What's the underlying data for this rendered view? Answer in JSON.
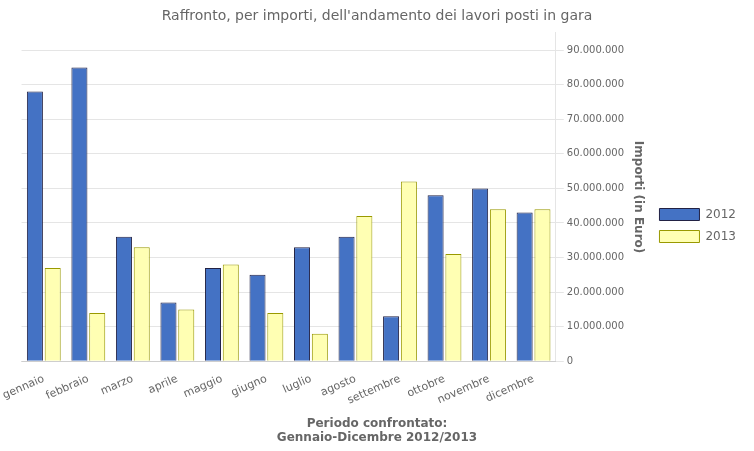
{
  "chart_data": {
    "type": "bar",
    "title": "Raffronto, per importi, dell'andamento dei lavori posti in gara",
    "subtitle": [
      "Periodo confrontato:",
      "Gennaio-Dicembre 2012/2013"
    ],
    "ylabel": "Importi (in Euro)",
    "categories": [
      "gennaio",
      "febbraio",
      "marzo",
      "aprile",
      "maggio",
      "giugno",
      "luglio",
      "agosto",
      "settembre",
      "ottobre",
      "novembre",
      "dicembre"
    ],
    "series": [
      {
        "name": "2012",
        "color": "#4472C4",
        "values": [
          78000000,
          85000000,
          36000000,
          17000000,
          27000000,
          25000000,
          33000000,
          36000000,
          13000000,
          48000000,
          50000000,
          43000000
        ]
      },
      {
        "name": "2013",
        "color": "#FFFFB3",
        "values": [
          27000000,
          14000000,
          33000000,
          15000000,
          28000000,
          14000000,
          8000000,
          42000000,
          52000000,
          31000000,
          44000000,
          44000000
        ]
      }
    ],
    "ylim": [
      0,
      95000000
    ],
    "yticks": [
      0,
      {
        "value": 10000000,
        "label": "10.000.000"
      },
      {
        "value": 20000000,
        "label": "20.000.000"
      },
      {
        "value": 30000000,
        "label": "30.000.000"
      },
      {
        "value": 40000000,
        "label": "40.000.000"
      },
      {
        "value": 50000000,
        "label": "50.000.000"
      },
      {
        "value": 60000000,
        "label": "60.000.000"
      },
      {
        "value": 70000000,
        "label": "70.000.000"
      },
      {
        "value": 80000000,
        "label": "80.000.000"
      },
      {
        "value": 90000000,
        "label": "90.000.000"
      }
    ],
    "grid": true,
    "legend": "right"
  }
}
